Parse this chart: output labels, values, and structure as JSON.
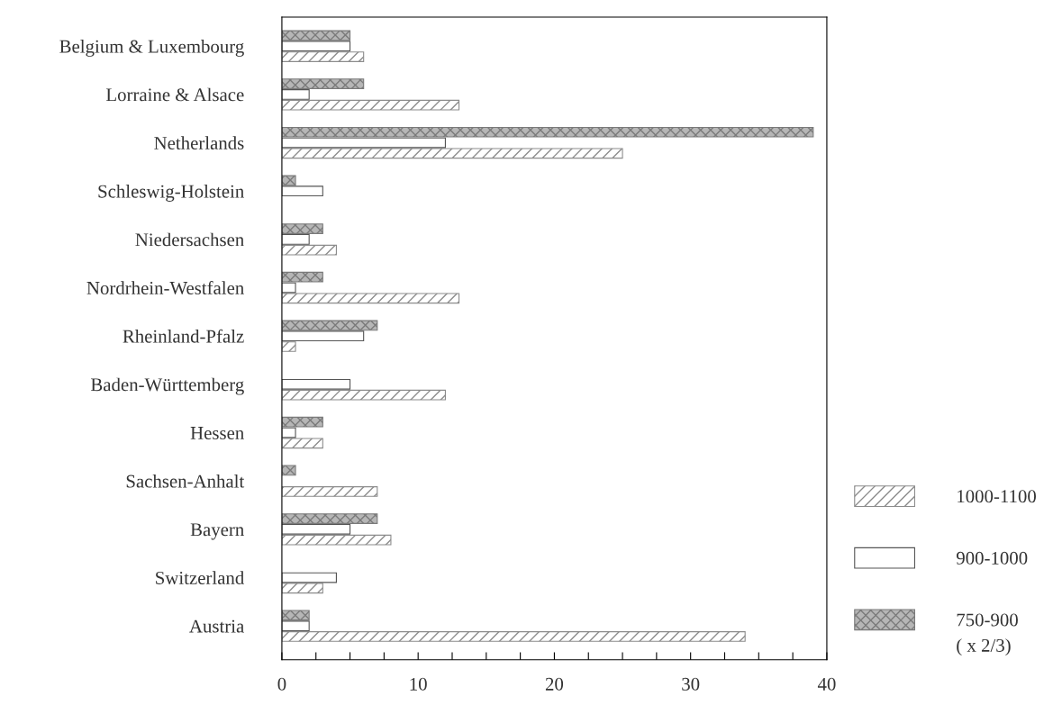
{
  "chart_data": {
    "type": "bar",
    "orientation": "horizontal",
    "categories": [
      "Belgium & Luxembourg",
      "Lorraine & Alsace",
      "Netherlands",
      "Schleswig-Holstein",
      "Niedersachsen",
      "Nordrhein-Westfalen",
      "Rheinland-Pfalz",
      "Baden-Württemberg",
      "Hessen",
      "Sachsen-Anhalt",
      "Bayern",
      "Switzerland",
      "Austria"
    ],
    "series": [
      {
        "name": "1000-1100",
        "color": "#8c8c8c",
        "values": [
          6,
          13,
          25,
          null,
          4,
          13,
          1,
          12,
          3,
          7,
          8,
          3,
          34
        ]
      },
      {
        "name": "900-1000",
        "color": "#555555",
        "values": [
          5,
          2,
          12,
          3,
          2,
          1,
          6,
          5,
          1,
          null,
          5,
          4,
          2
        ]
      },
      {
        "name": "750-900",
        "color": "#7a7a7a",
        "values": [
          5,
          6,
          39,
          1,
          3,
          3,
          7,
          null,
          3,
          1,
          7,
          null,
          2
        ]
      }
    ],
    "xlim": [
      0,
      40
    ],
    "xticks": [
      0,
      {
        "value": 2.5,
        "label": null
      },
      {
        "value": 5,
        "label": null
      },
      {
        "value": 7.5,
        "label": null
      },
      10,
      {
        "value": 12.5,
        "label": null
      },
      {
        "value": 15,
        "label": null
      },
      {
        "value": 17.5,
        "label": null
      },
      20,
      {
        "value": 22.5,
        "label": null
      },
      {
        "value": 25,
        "label": null
      },
      {
        "value": 27.5,
        "label": null
      },
      30,
      {
        "value": 32.5,
        "label": null
      },
      {
        "value": 35,
        "label": null
      },
      {
        "value": 37.5,
        "label": null
      },
      40
    ],
    "annotations": [
      "( x 2/3)"
    ],
    "legend": "right",
    "grid": false
  }
}
